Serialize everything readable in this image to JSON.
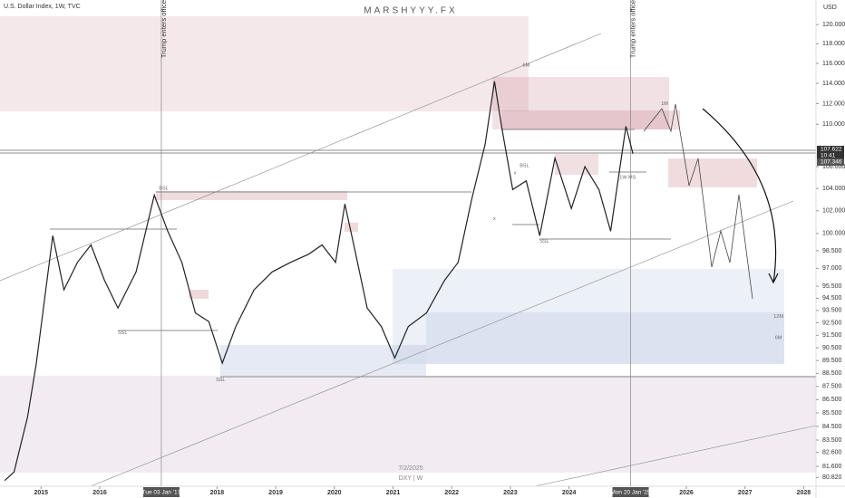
{
  "chart_data": {
    "type": "line",
    "title": "U.S. Dollar Index, 1W, TVC",
    "watermark": "MARSHYYY.FX",
    "currency": "USD",
    "color": "#222222",
    "log_scale": true,
    "x": [
      2014.38,
      2014.54,
      2014.77,
      2014.92,
      2015.08,
      2015.2,
      2015.39,
      2015.62,
      2015.85,
      2016.08,
      2016.31,
      2016.62,
      2016.93,
      2017.16,
      2017.4,
      2017.63,
      2017.86,
      2018.09,
      2018.32,
      2018.63,
      2018.94,
      2019.25,
      2019.56,
      2019.79,
      2020.02,
      2020.18,
      2020.33,
      2020.56,
      2020.8,
      2021.03,
      2021.26,
      2021.57,
      2021.88,
      2022.11,
      2022.34,
      2022.57,
      2022.73,
      2022.85,
      2023.04,
      2023.27,
      2023.5,
      2023.76,
      2024.04,
      2024.27,
      2024.51,
      2024.71,
      2024.97,
      2025.09
    ],
    "values": [
      80.6,
      81.2,
      85.2,
      89.3,
      95.2,
      99.8,
      95.2,
      97.5,
      99.0,
      96.0,
      93.7,
      96.7,
      103.4,
      100.2,
      97.5,
      93.3,
      92.6,
      89.3,
      92.2,
      95.2,
      96.7,
      97.5,
      98.2,
      99.0,
      97.5,
      102.6,
      99.0,
      93.7,
      92.2,
      89.7,
      92.2,
      93.3,
      96.0,
      97.5,
      103.0,
      108.1,
      114.2,
      109.8,
      103.9,
      104.7,
      99.8,
      106.8,
      102.2,
      106.0,
      103.9,
      100.2,
      109.8,
      107.2
    ],
    "xlim": [
      2014.3,
      2028.21
    ],
    "ylim": [
      80.2,
      122.6
    ],
    "xticks": [
      2015,
      2016,
      2018,
      2019,
      2020,
      2021,
      2022,
      2023,
      2024,
      2026,
      2027,
      2028
    ],
    "yticks": [
      {
        "value": 120,
        "label": "120.000"
      },
      {
        "value": 118,
        "label": "118.000"
      },
      {
        "value": 116,
        "label": "116.000"
      },
      {
        "value": 114,
        "label": "114.000"
      },
      {
        "value": 112,
        "label": "112.000"
      },
      {
        "value": 110,
        "label": "110.000"
      },
      {
        "value": 106,
        "label": "106.000"
      },
      {
        "value": 104,
        "label": "104.000"
      },
      {
        "value": 102,
        "label": "102.000"
      },
      {
        "value": 100,
        "label": "100.000"
      },
      {
        "value": 98.5,
        "label": "98.500"
      },
      {
        "value": 97,
        "label": "97.000"
      },
      {
        "value": 95.5,
        "label": "95.500"
      },
      {
        "value": 94.5,
        "label": "94.500"
      },
      {
        "value": 93.5,
        "label": "93.500"
      },
      {
        "value": 92.5,
        "label": "92.500"
      },
      {
        "value": 91.5,
        "label": "91.500"
      },
      {
        "value": 90.5,
        "label": "90.500"
      },
      {
        "value": 89.5,
        "label": "89.500"
      },
      {
        "value": 88.5,
        "label": "88.500"
      },
      {
        "value": 87.5,
        "label": "87.500"
      },
      {
        "value": 86.5,
        "label": "86.500"
      },
      {
        "value": 85.5,
        "label": "85.500"
      },
      {
        "value": 84.5,
        "label": "84.500"
      },
      {
        "value": 83.5,
        "label": "83.500"
      },
      {
        "value": 82.6,
        "label": "82.600"
      },
      {
        "value": 81.6,
        "label": "81.600"
      },
      {
        "value": 80.82,
        "label": "80.820"
      }
    ],
    "vlines": [
      {
        "x": 2017.05,
        "label": "Trump enters office",
        "date_label": "Tue 03 Jan '17"
      },
      {
        "x": 2025.05,
        "label": "Trump enters office",
        "date_label": "Mon 20 Jan '25"
      }
    ],
    "price_tags": [
      "107.622",
      "10:41",
      "107.346"
    ],
    "annotations": [
      {
        "text": "6M",
        "x": 2023.27,
        "y": 115.8
      },
      {
        "text": "1M",
        "x": 2025.63,
        "y": 112.0
      },
      {
        "text": "BSL",
        "x": 2017.09,
        "y": 104.0
      },
      {
        "text": "SSL",
        "x": 2016.39,
        "y": 91.7
      },
      {
        "text": "SSL",
        "x": 2018.06,
        "y": 88.0
      },
      {
        "text": "BSL",
        "x": 2023.24,
        "y": 106.1
      },
      {
        "text": "SSL",
        "x": 2023.58,
        "y": 99.3
      },
      {
        "text": "1W MS",
        "x": 2025.0,
        "y": 105.0
      },
      {
        "text": "12M",
        "x": 2027.57,
        "y": 93.0
      },
      {
        "text": "6M",
        "x": 2027.57,
        "y": 91.3
      },
      {
        "text": "x",
        "x": 2023.08,
        "y": 105.4
      },
      {
        "text": "x",
        "x": 2022.73,
        "y": 101.3
      }
    ],
    "footer": [
      "7/2/2025",
      "DXY | W"
    ]
  }
}
